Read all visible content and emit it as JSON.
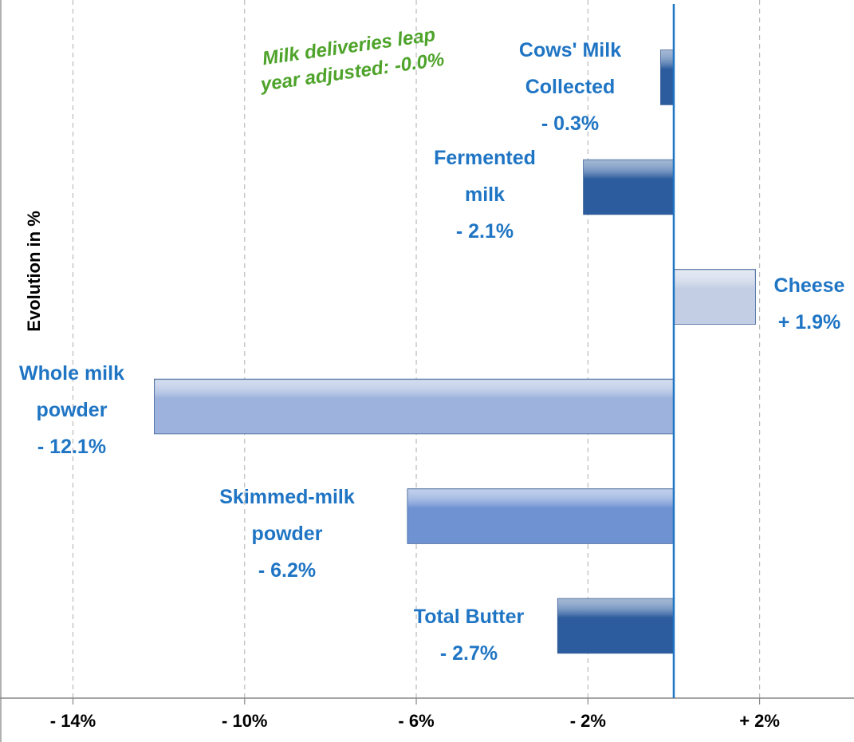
{
  "chart_data": {
    "type": "bar",
    "orientation": "horizontal",
    "y_axis_label": "Evolution in %",
    "annotation": "Milk deliveries leap year adjusted: -0.0%",
    "categories": [
      "Cows' Milk Collected",
      "Fermented milk",
      "Cheese",
      "Whole milk powder",
      "Skimmed-milk powder",
      "Total Butter"
    ],
    "values": [
      -0.3,
      -2.1,
      1.9,
      -12.1,
      -6.2,
      -2.7
    ],
    "value_labels": [
      "- 0.3%",
      "- 2.1%",
      "+ 1.9%",
      "- 12.1%",
      "- 6.2%",
      "- 2.7%"
    ],
    "colors": [
      "#2c5c9e",
      "#2c5c9e",
      "#c3cee4",
      "#9db2dc",
      "#6f92d3",
      "#2c5c9e"
    ],
    "label_color": "#1f75c4",
    "annotation_color": "#4ea32a",
    "xlim": [
      -15.7,
      4.2
    ],
    "xticks": [
      {
        "value": -14,
        "label": "- 14%"
      },
      {
        "value": -10,
        "label": "- 10%"
      },
      {
        "value": -6,
        "label": "- 6%"
      },
      {
        "value": -2,
        "label": "- 2%"
      },
      {
        "value": 2,
        "label": "+ 2%"
      }
    ],
    "grid": true
  }
}
